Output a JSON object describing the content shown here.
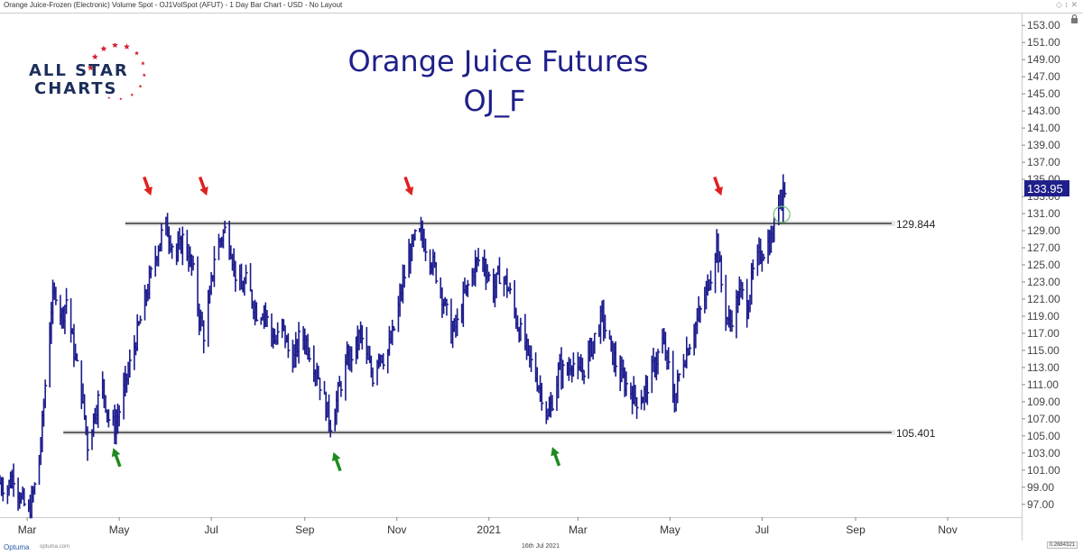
{
  "header": {
    "title": "Orange Juice-Frozen (Electronic) Volume Spot - OJ1VolSpot (AFUT) - 1 Day Bar Chart - USD - No Layout"
  },
  "logo": {
    "line1": "ALL STAR",
    "line2": "CHARTS",
    "star_color": "#d62031",
    "text_color": "#1b2e5a"
  },
  "footer": {
    "brand": "Optuma",
    "url": "optuma.com",
    "date": "16th Jul 2021",
    "ratio": "0.2684321"
  },
  "chart_data": {
    "type": "bar",
    "title": "Orange Juice Futures",
    "subtitle": "OJ_F",
    "x_tick_labels": [
      "Mar",
      "May",
      "Jul",
      "Sep",
      "Nov",
      "2021",
      "Mar",
      "May",
      "Jul",
      "Sep",
      "Nov"
    ],
    "y_tick_labels": [
      "97.00",
      "99.00",
      "101.00",
      "103.00",
      "105.00",
      "107.00",
      "109.00",
      "111.00",
      "113.00",
      "115.00",
      "117.00",
      "119.00",
      "121.00",
      "123.00",
      "125.00",
      "127.00",
      "129.00",
      "131.00",
      "133.00",
      "135.00",
      "137.00",
      "139.00",
      "141.00",
      "143.00",
      "145.00",
      "147.00",
      "149.00",
      "151.00",
      "153.00"
    ],
    "ylim": [
      95.5,
      154.5
    ],
    "x_range_months": [
      "2020-02-12",
      "2021-12-20"
    ],
    "last_price": "133.95",
    "horizontal_levels": [
      {
        "label": "129.844",
        "value": 129.844,
        "start": "2020-05-05"
      },
      {
        "label": "105.401",
        "value": 105.401,
        "start": "2020-03-25"
      }
    ],
    "series_color": "#1a1a8c",
    "price_path": [
      [
        "2020-02-12",
        99.5
      ],
      [
        "2020-02-17",
        99
      ],
      [
        "2020-02-21",
        100.5
      ],
      [
        "2020-02-26",
        97.5
      ],
      [
        "2020-03-02",
        96
      ],
      [
        "2020-03-06",
        99
      ],
      [
        "2020-03-10",
        104
      ],
      [
        "2020-03-13",
        111
      ],
      [
        "2020-03-17",
        120
      ],
      [
        "2020-03-20",
        122
      ],
      [
        "2020-03-24",
        119
      ],
      [
        "2020-03-27",
        121
      ],
      [
        "2020-03-31",
        116
      ],
      [
        "2020-04-03",
        113
      ],
      [
        "2020-04-07",
        109
      ],
      [
        "2020-04-10",
        104
      ],
      [
        "2020-04-15",
        108
      ],
      [
        "2020-04-20",
        111
      ],
      [
        "2020-04-24",
        107
      ],
      [
        "2020-04-28",
        106
      ],
      [
        "2020-05-01",
        108
      ],
      [
        "2020-05-05",
        111
      ],
      [
        "2020-05-09",
        114
      ],
      [
        "2020-05-13",
        117
      ],
      [
        "2020-05-17",
        120
      ],
      [
        "2020-05-21",
        123
      ],
      [
        "2020-05-25",
        126
      ],
      [
        "2020-05-29",
        128.5
      ],
      [
        "2020-06-01",
        129.5
      ],
      [
        "2020-06-04",
        128
      ],
      [
        "2020-06-08",
        126
      ],
      [
        "2020-06-12",
        128
      ],
      [
        "2020-06-16",
        126
      ],
      [
        "2020-06-19",
        124
      ],
      [
        "2020-06-23",
        119
      ],
      [
        "2020-06-26",
        117
      ],
      [
        "2020-06-30",
        121
      ],
      [
        "2020-07-03",
        126
      ],
      [
        "2020-07-07",
        128
      ],
      [
        "2020-07-10",
        129
      ],
      [
        "2020-07-14",
        127
      ],
      [
        "2020-07-17",
        124
      ],
      [
        "2020-07-21",
        122
      ],
      [
        "2020-07-24",
        123
      ],
      [
        "2020-07-28",
        121
      ],
      [
        "2020-08-01",
        119
      ],
      [
        "2020-08-05",
        120
      ],
      [
        "2020-08-09",
        117
      ],
      [
        "2020-08-13",
        116
      ],
      [
        "2020-08-17",
        118
      ],
      [
        "2020-08-21",
        115
      ],
      [
        "2020-08-25",
        114
      ],
      [
        "2020-08-29",
        117
      ],
      [
        "2020-09-02",
        116
      ],
      [
        "2020-09-06",
        114
      ],
      [
        "2020-09-10",
        112
      ],
      [
        "2020-09-14",
        109
      ],
      [
        "2020-09-18",
        106.5
      ],
      [
        "2020-09-22",
        109
      ],
      [
        "2020-09-26",
        112
      ],
      [
        "2020-09-30",
        114
      ],
      [
        "2020-10-04",
        115
      ],
      [
        "2020-10-08",
        117
      ],
      [
        "2020-10-12",
        114
      ],
      [
        "2020-10-16",
        112
      ],
      [
        "2020-10-20",
        115
      ],
      [
        "2020-10-24",
        114
      ],
      [
        "2020-10-28",
        116
      ],
      [
        "2020-11-01",
        119
      ],
      [
        "2020-11-05",
        123
      ],
      [
        "2020-11-09",
        126
      ],
      [
        "2020-11-13",
        128
      ],
      [
        "2020-11-17",
        128.5
      ],
      [
        "2020-11-21",
        127
      ],
      [
        "2020-11-25",
        125
      ],
      [
        "2020-11-29",
        123
      ],
      [
        "2020-12-03",
        120
      ],
      [
        "2020-12-07",
        117
      ],
      [
        "2020-12-11",
        118
      ],
      [
        "2020-12-15",
        121
      ],
      [
        "2020-12-19",
        123
      ],
      [
        "2020-12-23",
        125
      ],
      [
        "2020-12-27",
        126
      ],
      [
        "2020-12-31",
        124
      ],
      [
        "2021-01-04",
        122
      ],
      [
        "2021-01-08",
        124
      ],
      [
        "2021-01-12",
        123
      ],
      [
        "2021-01-16",
        121
      ],
      [
        "2021-01-20",
        118
      ],
      [
        "2021-01-24",
        116
      ],
      [
        "2021-01-28",
        114
      ],
      [
        "2021-02-01",
        112
      ],
      [
        "2021-02-05",
        110
      ],
      [
        "2021-02-09",
        107
      ],
      [
        "2021-02-13",
        110
      ],
      [
        "2021-02-17",
        113
      ],
      [
        "2021-02-21",
        112
      ],
      [
        "2021-02-25",
        114
      ],
      [
        "2021-03-01",
        112
      ],
      [
        "2021-03-05",
        113
      ],
      [
        "2021-03-09",
        115
      ],
      [
        "2021-03-13",
        117
      ],
      [
        "2021-03-17",
        119
      ],
      [
        "2021-03-21",
        116
      ],
      [
        "2021-03-25",
        114
      ],
      [
        "2021-03-29",
        112
      ],
      [
        "2021-04-02",
        111
      ],
      [
        "2021-04-06",
        110
      ],
      [
        "2021-04-10",
        109
      ],
      [
        "2021-04-14",
        110
      ],
      [
        "2021-04-18",
        112
      ],
      [
        "2021-04-22",
        114
      ],
      [
        "2021-04-26",
        116
      ],
      [
        "2021-04-30",
        113
      ],
      [
        "2021-05-04",
        109
      ],
      [
        "2021-05-08",
        113
      ],
      [
        "2021-05-12",
        115
      ],
      [
        "2021-05-16",
        117
      ],
      [
        "2021-05-20",
        119
      ],
      [
        "2021-05-24",
        121
      ],
      [
        "2021-05-28",
        124
      ],
      [
        "2021-06-01",
        128
      ],
      [
        "2021-06-05",
        121
      ],
      [
        "2021-06-09",
        118
      ],
      [
        "2021-06-13",
        120
      ],
      [
        "2021-06-17",
        122
      ],
      [
        "2021-06-21",
        120
      ],
      [
        "2021-06-25",
        124
      ],
      [
        "2021-06-29",
        126
      ],
      [
        "2021-07-03",
        127
      ],
      [
        "2021-07-07",
        128
      ],
      [
        "2021-07-10",
        130
      ],
      [
        "2021-07-13",
        134
      ],
      [
        "2021-07-16",
        133.95
      ]
    ]
  }
}
